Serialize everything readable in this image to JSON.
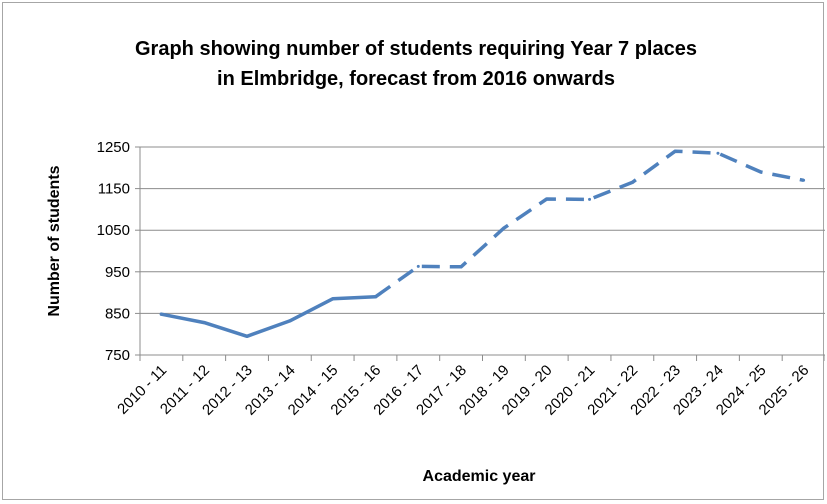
{
  "chart_data": {
    "type": "line",
    "title_lines": [
      "Graph showing number of students requiring Year 7 places",
      "in Elmbridge, forecast from 2016 onwards"
    ],
    "xlabel": "Academic year",
    "ylabel": "Number of students",
    "categories": [
      "2010 - 11",
      "2011 - 12",
      "2012 - 13",
      "2013 - 14",
      "2014 - 15",
      "2015 - 16",
      "2016 - 17",
      "2017 - 18",
      "2018 - 19",
      "2019 - 20",
      "2020 - 21",
      "2021 - 22",
      "2022 - 23",
      "2023 - 24",
      "2024 - 25",
      "2025 - 26"
    ],
    "yticks": [
      750,
      850,
      950,
      1050,
      1150,
      1250
    ],
    "ylim": [
      750,
      1300
    ],
    "series": [
      {
        "values": [
          848,
          828,
          795,
          832,
          885,
          890,
          963,
          962,
          1055,
          1125,
          1124,
          1165,
          1240,
          1235,
          1190,
          1170
        ],
        "solid_until_index": 5,
        "color": "#4f81bd"
      }
    ],
    "grid": true,
    "legend": "none"
  }
}
